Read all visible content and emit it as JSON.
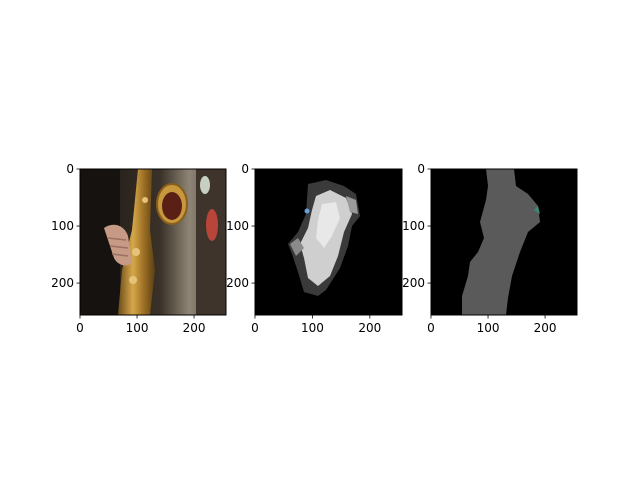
{
  "chart_data": [
    {
      "type": "image",
      "content": "saxophone photograph",
      "xlim": [
        0,
        256
      ],
      "ylim": [
        256,
        0
      ],
      "xticks": [
        0,
        100,
        200
      ],
      "yticks": [
        0,
        100,
        200
      ],
      "xtick_labels": [
        "0",
        "100",
        "200"
      ],
      "ytick_labels": [
        "0",
        "100",
        "200"
      ]
    },
    {
      "type": "image",
      "content": "grayscale segmentation mask",
      "xlim": [
        0,
        256
      ],
      "ylim": [
        256,
        0
      ],
      "xticks": [
        0,
        100,
        200
      ],
      "yticks": [
        0,
        100,
        200
      ],
      "xtick_labels": [
        "0",
        "100",
        "200"
      ],
      "ytick_labels": [
        "0",
        "100",
        "200"
      ]
    },
    {
      "type": "image",
      "content": "gray silhouette mask",
      "xlim": [
        0,
        256
      ],
      "ylim": [
        256,
        0
      ],
      "xticks": [
        0,
        100,
        200
      ],
      "yticks": [
        0,
        100,
        200
      ],
      "xtick_labels": [
        "0",
        "100",
        "200"
      ],
      "ytick_labels": [
        "0",
        "100",
        "200"
      ]
    }
  ],
  "colors": {
    "background": "#ffffff",
    "mask_bg": "#000000",
    "mask_gray": "#555555",
    "mask_light": "#d9d9d9",
    "photo_dark": "#1f1a15",
    "sax_gold": "#b8862d"
  }
}
